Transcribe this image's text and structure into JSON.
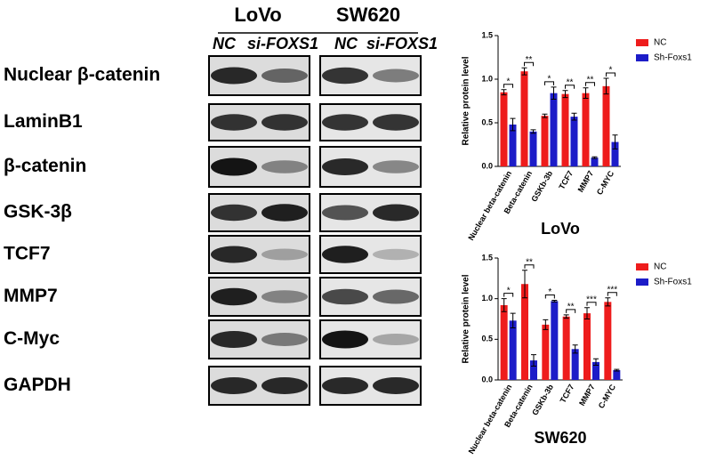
{
  "blot": {
    "cell_lines": [
      "LoVo",
      "SW620"
    ],
    "conditions": [
      "NC",
      "si-FOXS1",
      "NC",
      "si-FOXS1"
    ],
    "proteins": [
      "Nuclear β-catenin",
      "LaminB1",
      "β-catenin",
      "GSK-3β",
      "TCF7",
      "MMP7",
      "C-Myc",
      "GAPDH"
    ]
  },
  "chart_data": [
    {
      "type": "bar",
      "title": "LoVo",
      "ylabel": "Relative protein level",
      "categories": [
        "Nuclear beta-catenin",
        "Beta-catenin",
        "GSKb-3b",
        "TCF7",
        "MMP7",
        "C-MYC"
      ],
      "series": [
        {
          "name": "NC",
          "color": "#ee1c1c",
          "values": [
            0.85,
            1.09,
            0.58,
            0.83,
            0.84,
            0.92
          ],
          "errors": [
            0.03,
            0.04,
            0.02,
            0.04,
            0.06,
            0.09
          ]
        },
        {
          "name": "Sh-Foxs1",
          "color": "#1c1cc8",
          "values": [
            0.48,
            0.4,
            0.84,
            0.57,
            0.1,
            0.28
          ],
          "errors": [
            0.07,
            0.02,
            0.07,
            0.04,
            0.01,
            0.08
          ]
        }
      ],
      "annotations": [
        "*",
        "**",
        "*",
        "**",
        "**",
        "*"
      ],
      "ylim": [
        0,
        1.5
      ],
      "yticks": [
        {
          "value": 0,
          "label": "0.0"
        },
        {
          "value": 0.5,
          "label": "0.5"
        },
        {
          "value": 1,
          "label": "1.0"
        },
        {
          "value": 1.5,
          "label": "1.5"
        }
      ]
    },
    {
      "type": "bar",
      "title": "SW620",
      "ylabel": "Relative protein level",
      "categories": [
        "Nuclear beta-catenin",
        "Beta-catenin",
        "GSKb-3b",
        "TCF7",
        "MMP7",
        "C-MYC"
      ],
      "series": [
        {
          "name": "NC",
          "color": "#ee1c1c",
          "values": [
            0.92,
            1.18,
            0.68,
            0.78,
            0.82,
            0.96
          ],
          "errors": [
            0.08,
            0.17,
            0.06,
            0.02,
            0.07,
            0.05
          ]
        },
        {
          "name": "Sh-Foxs1",
          "color": "#1c1cc8",
          "values": [
            0.73,
            0.24,
            0.97,
            0.38,
            0.22,
            0.12
          ],
          "errors": [
            0.09,
            0.07,
            0.01,
            0.05,
            0.04,
            0.01
          ]
        }
      ],
      "annotations": [
        "*",
        "**",
        "*",
        "**",
        "***",
        "***"
      ],
      "ylim": [
        0,
        1.5
      ],
      "yticks": [
        {
          "value": 0,
          "label": "0.0"
        },
        {
          "value": 0.5,
          "label": "0.5"
        },
        {
          "value": 1,
          "label": "1.0"
        },
        {
          "value": 1.5,
          "label": "1.5"
        }
      ]
    }
  ]
}
